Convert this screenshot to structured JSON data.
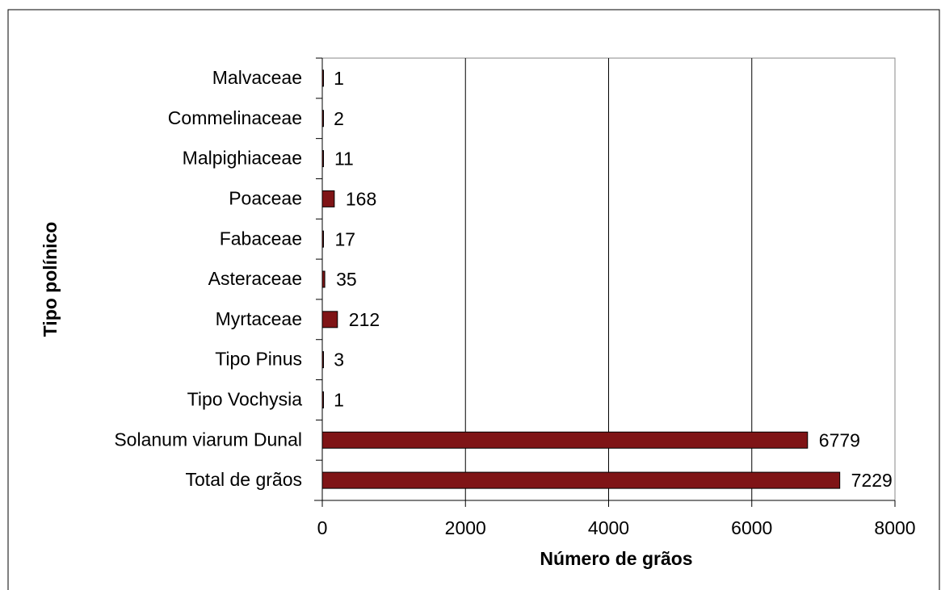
{
  "chart_data": {
    "type": "bar",
    "orientation": "horizontal",
    "x_label": "Número de grãos",
    "y_label": "Tipo polínico",
    "categories": [
      "Malvaceae",
      "Commelinaceae",
      "Malpighiaceae",
      "Poaceae",
      "Fabaceae",
      "Asteraceae",
      "Myrtaceae",
      "Tipo Pinus",
      "Tipo Vochysia",
      "Solanum viarum Dunal",
      "Total de grãos"
    ],
    "values": [
      1,
      2,
      11,
      168,
      17,
      35,
      212,
      3,
      1,
      6779,
      7229
    ],
    "color": "#7f1416",
    "xlim": [
      0,
      8000
    ],
    "xticks": [
      0,
      2000,
      4000,
      6000,
      8000
    ],
    "grid": true
  }
}
